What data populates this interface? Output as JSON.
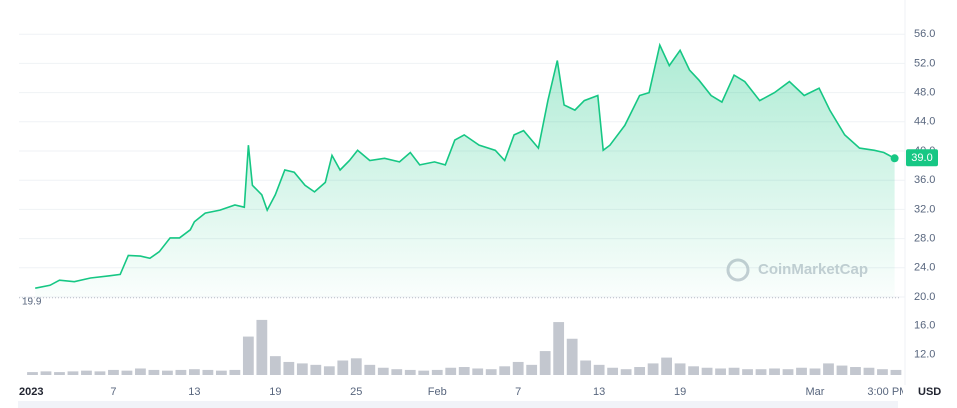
{
  "chart_data": [
    {
      "type": "line",
      "color": "#16c784",
      "watermark": "CoinMarketCap",
      "x": [
        1.2,
        2.3,
        3,
        4.1,
        5.3,
        6.7,
        7.5,
        8.1,
        9,
        9.7,
        10.4,
        11.2,
        11.9,
        12.7,
        13,
        13.8,
        14.9,
        16,
        16.7,
        17,
        17.3,
        18,
        18.4,
        19,
        19.7,
        20.4,
        21.2,
        21.9,
        22.7,
        23.2,
        23.8,
        24.5,
        25.1,
        26,
        27.1,
        28.2,
        29,
        29.7,
        30.8,
        31.6,
        32.3,
        33,
        34.1,
        35.3,
        36,
        36.7,
        37.4,
        38.5,
        39.2,
        39.9,
        40.4,
        41.2,
        41.9,
        42.9,
        43.3,
        43.8,
        44.9,
        46,
        46.7,
        47.5,
        48.2,
        49,
        49.7,
        50.4,
        51.3,
        52.1,
        53,
        53.8,
        54.9,
        56,
        57.1,
        58.2,
        59.3,
        60.1,
        61.2,
        62.3,
        63.4,
        64.1,
        64.9
      ],
      "values": [
        21.2,
        21.6,
        22.3,
        22.1,
        22.6,
        22.9,
        23.1,
        25.7,
        25.6,
        25.3,
        26.2,
        28.1,
        28.1,
        29.2,
        30.3,
        31.5,
        31.9,
        32.6,
        32.3,
        40.8,
        35.3,
        34.0,
        31.9,
        34.0,
        37.4,
        37.1,
        35.3,
        34.4,
        35.7,
        39.4,
        37.4,
        38.7,
        40.1,
        38.7,
        39.0,
        38.5,
        39.8,
        38.1,
        38.5,
        38.1,
        41.5,
        42.2,
        40.8,
        40.1,
        38.7,
        42.2,
        42.8,
        40.4,
        46.9,
        52.4,
        46.3,
        45.6,
        46.9,
        47.6,
        40.1,
        40.8,
        43.5,
        47.6,
        48.0,
        54.5,
        51.7,
        53.8,
        51.1,
        49.7,
        47.6,
        46.7,
        50.4,
        49.5,
        46.9,
        48.0,
        49.5,
        47.6,
        48.6,
        45.6,
        42.2,
        40.4,
        40.1,
        39.8,
        39.0
      ],
      "xlim": [
        0,
        65.3
      ],
      "ylim": [
        20,
        60
      ],
      "yticks": [
        {
          "value": 20,
          "label": "20.0"
        },
        {
          "value": 24,
          "label": "24.0"
        },
        {
          "value": 28,
          "label": "28.0"
        },
        {
          "value": 32,
          "label": "32.0"
        },
        {
          "value": 36,
          "label": "36.0"
        },
        {
          "value": 40,
          "label": "40.0"
        },
        {
          "value": 44,
          "label": "44.0"
        },
        {
          "value": 48,
          "label": "48.0"
        },
        {
          "value": 52,
          "label": "52.0"
        },
        {
          "value": 56,
          "label": "56.0"
        }
      ],
      "grid": true,
      "min_price": 19.9,
      "current_price": {
        "value": 39.0,
        "label": "39.0"
      }
    },
    {
      "type": "bar",
      "color": "#c3c7cf",
      "y_label": "USD",
      "x": [
        1,
        2,
        3,
        4,
        5,
        6,
        7,
        8,
        9,
        10,
        11,
        12,
        13,
        14,
        15,
        16,
        17,
        18,
        19,
        20,
        21,
        22,
        23,
        24,
        25,
        26,
        27,
        28,
        29,
        30,
        31,
        32,
        33,
        34,
        35,
        36,
        37,
        38,
        39,
        40,
        41,
        42,
        43,
        44,
        45,
        46,
        47,
        48,
        49,
        50,
        51,
        52,
        53,
        54,
        55,
        56,
        57,
        58,
        59,
        60,
        61,
        62,
        63,
        64,
        65
      ],
      "values": [
        9.6,
        9.7,
        9.6,
        9.7,
        9.8,
        9.7,
        9.9,
        9.8,
        10.1,
        9.9,
        9.8,
        9.9,
        10.0,
        9.9,
        9.8,
        9.9,
        14.5,
        16.8,
        11.8,
        11.0,
        10.8,
        10.6,
        10.4,
        11.2,
        11.5,
        10.6,
        10.2,
        10.0,
        9.9,
        9.8,
        9.9,
        10.2,
        10.3,
        10.1,
        10.0,
        10.4,
        11.0,
        10.6,
        12.5,
        16.5,
        14.2,
        11.2,
        10.6,
        10.2,
        10.0,
        10.3,
        10.8,
        11.6,
        10.8,
        10.4,
        10.2,
        10.1,
        10.2,
        10.0,
        10.0,
        10.1,
        10.0,
        10.2,
        10.1,
        10.8,
        10.5,
        10.3,
        10.2,
        10.0,
        9.9
      ],
      "xlim": [
        0,
        65.3
      ],
      "ylim": [
        9.2,
        17.2
      ],
      "yticks": [
        {
          "value": 12,
          "label": "12.0"
        },
        {
          "value": 16,
          "label": "16.0"
        }
      ],
      "xticks": [
        {
          "value": 0,
          "label": "2023"
        },
        7,
        13,
        19,
        25,
        {
          "value": 31,
          "label": "Feb"
        },
        {
          "value": 37,
          "label": "7"
        },
        {
          "value": 43,
          "label": "13"
        },
        {
          "value": 49,
          "label": "19"
        },
        {
          "value": 59,
          "label": "Mar"
        },
        {
          "value": 64.4,
          "label": "3:00 PM"
        }
      ]
    }
  ]
}
